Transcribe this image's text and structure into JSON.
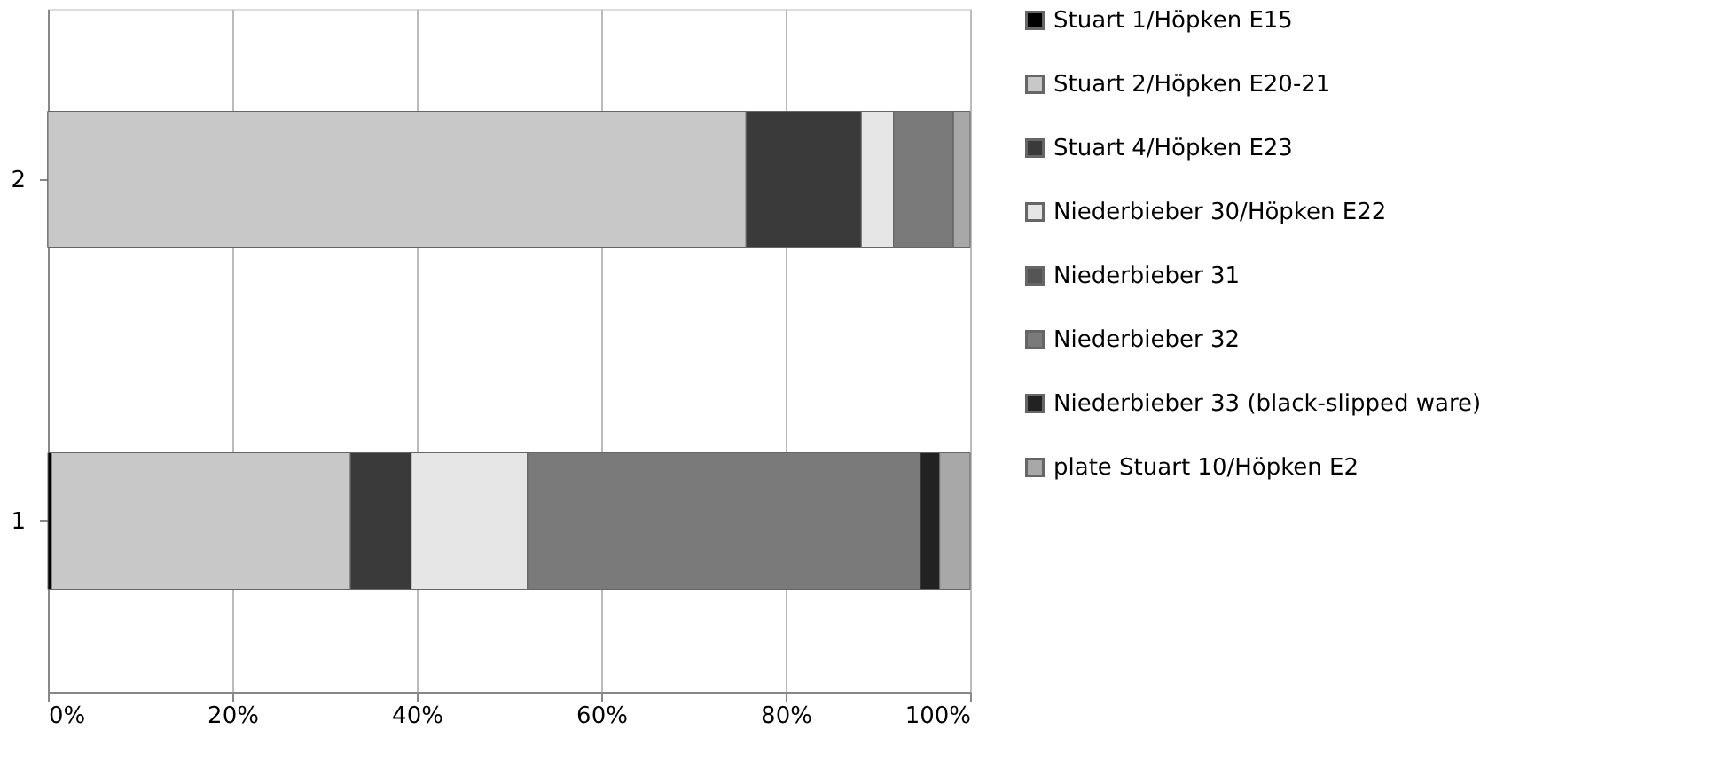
{
  "chart_data": {
    "type": "bar",
    "orientation": "horizontal",
    "stacked": true,
    "categories": [
      "2",
      "1"
    ],
    "series": [
      {
        "name": "Stuart 1/Höpken E15",
        "color": "#000000",
        "values": [
          0,
          0.4
        ]
      },
      {
        "name": "Stuart 2/Höpken E20-21",
        "color": "#c8c8c8",
        "values": [
          75.7,
          32.4
        ]
      },
      {
        "name": "Stuart 4/Höpken E23",
        "color": "#3a3a3a",
        "values": [
          12.5,
          6.6
        ]
      },
      {
        "name": "Niederbieber 30/Höpken E22",
        "color": "#e6e6e6",
        "values": [
          3.5,
          12.6
        ]
      },
      {
        "name": "Niederbieber 31",
        "color": "#555555",
        "values": [
          0,
          0
        ]
      },
      {
        "name": "Niederbieber 32",
        "color": "#7a7a7a",
        "values": [
          6.5,
          42.6
        ]
      },
      {
        "name": "Niederbieber 33 (black-slipped ware)",
        "color": "#222222",
        "values": [
          0,
          2.1
        ]
      },
      {
        "name": "plate Stuart 10/Höpken E2",
        "color": "#a8a8a8",
        "values": [
          1.8,
          3.3
        ]
      }
    ],
    "xlim": [
      0,
      100
    ],
    "xticks": [
      {
        "value": 0,
        "label": "0%"
      },
      {
        "value": 20,
        "label": "20%"
      },
      {
        "value": 40,
        "label": "40%"
      },
      {
        "value": 60,
        "label": "60%"
      },
      {
        "value": 80,
        "label": "80%"
      },
      {
        "value": 100,
        "label": "100%"
      }
    ],
    "grid": "x",
    "legend": "right"
  }
}
